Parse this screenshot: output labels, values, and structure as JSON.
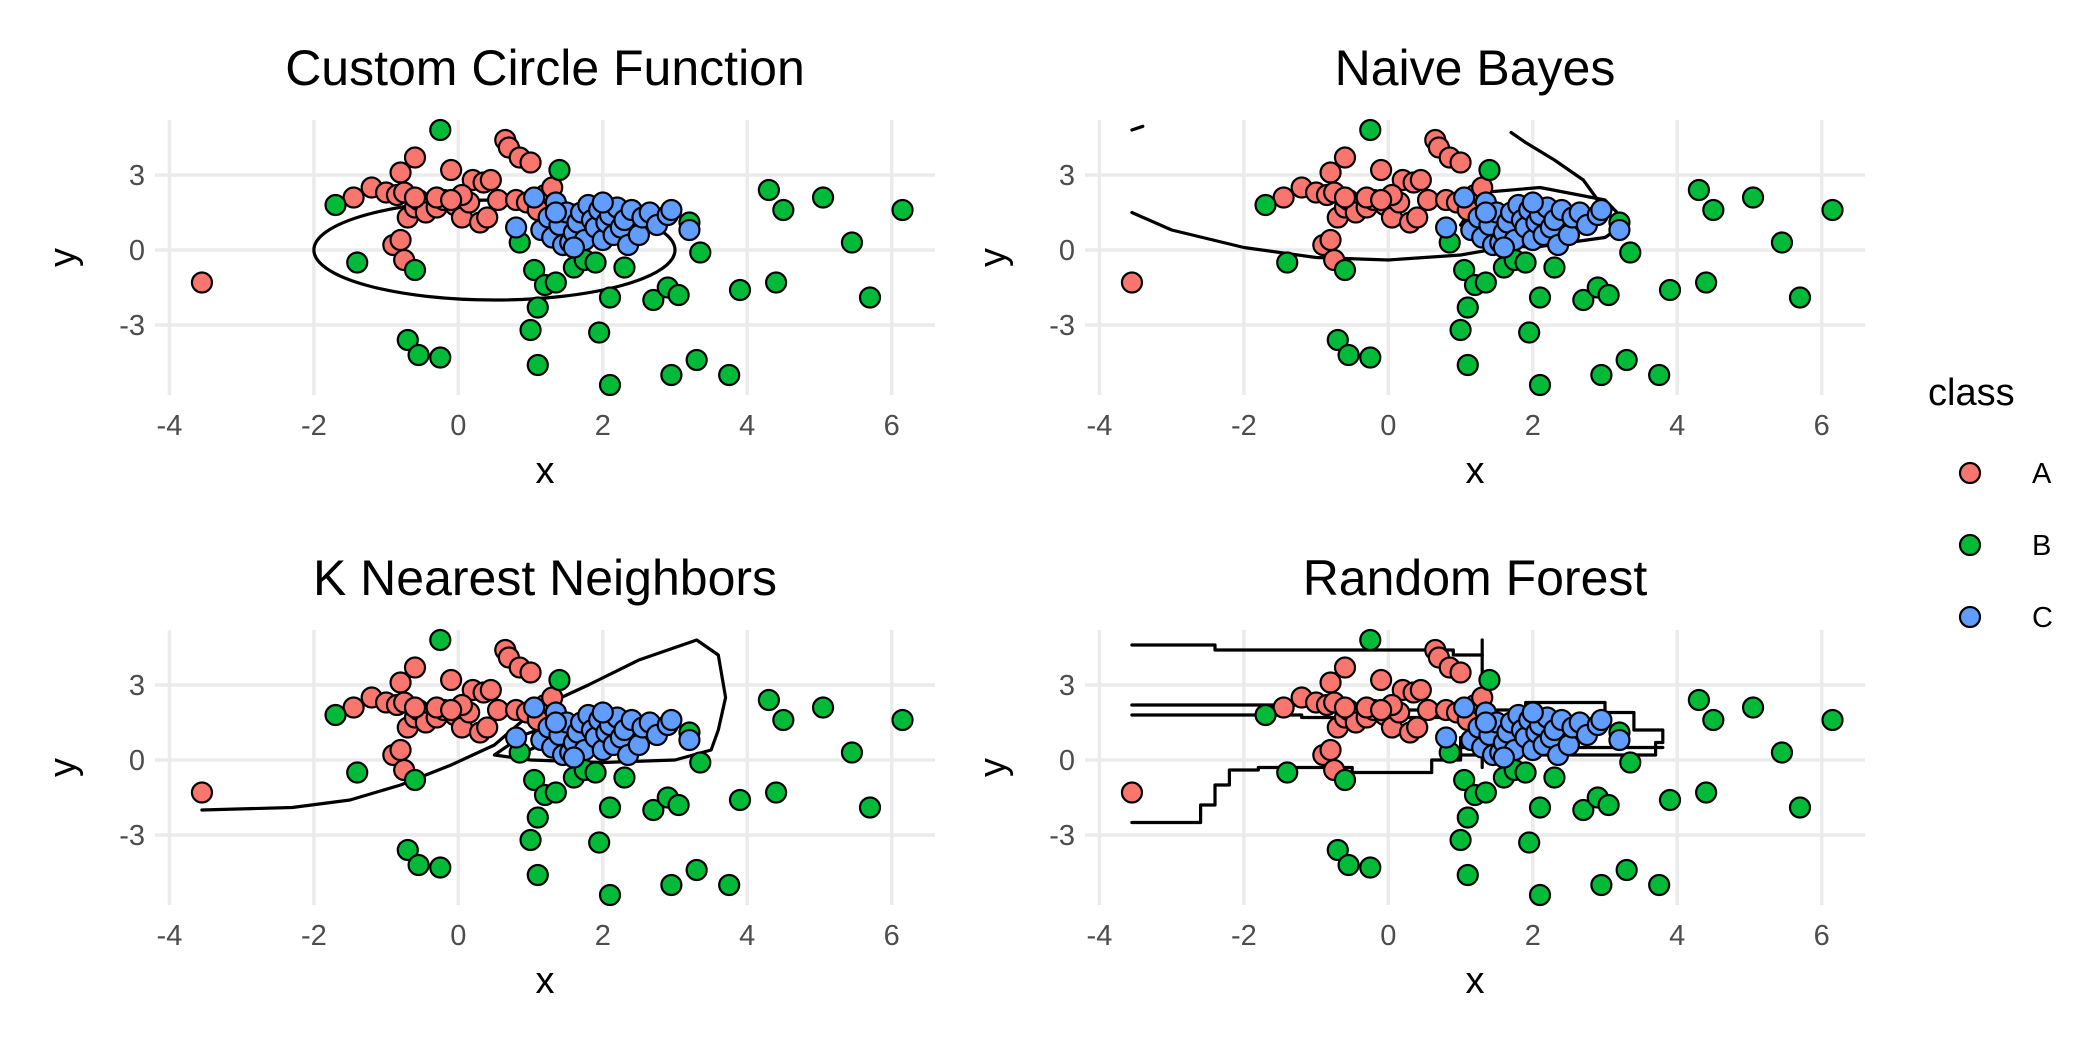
{
  "colors": {
    "A": "#F8766D",
    "B": "#00BA38",
    "C": "#619CFF"
  },
  "legend": {
    "title": "class",
    "items": [
      "A",
      "B",
      "C"
    ],
    "placement": "right"
  },
  "chart_data": [
    {
      "type": "scatter",
      "title": "Custom Circle Function",
      "xlabel": "x",
      "ylabel": "y",
      "xlim": [
        -4.2,
        6.6
      ],
      "ylim": [
        -5.8,
        5.2
      ],
      "xticks": [
        -4,
        -2,
        0,
        2,
        4,
        6
      ],
      "yticks": [
        -3,
        0,
        3
      ],
      "grid": true,
      "boundary": "ellipse",
      "boundary_ellipse": {
        "cx": 0.5,
        "cy": 0,
        "rx": 2.5,
        "ry": 2
      }
    },
    {
      "type": "scatter",
      "title": "Naive Bayes",
      "xlabel": "x",
      "ylabel": "y",
      "xlim": [
        -4.2,
        6.6
      ],
      "ylim": [
        -5.8,
        5.2
      ],
      "xticks": [
        -4,
        -2,
        0,
        2,
        4,
        6
      ],
      "yticks": [
        -3,
        0,
        3
      ],
      "grid": true,
      "boundary": "polyline",
      "boundary_paths": [
        [
          [
            -3.55,
            4.8
          ],
          [
            -3.4,
            4.95
          ]
        ],
        [
          [
            -3.55,
            1.5
          ],
          [
            -3.0,
            0.8
          ],
          [
            -2.0,
            0.1
          ],
          [
            -1.0,
            -0.3
          ],
          [
            0.0,
            -0.4
          ],
          [
            1.0,
            -0.2
          ],
          [
            2.0,
            0.3
          ],
          [
            2.7,
            1.2
          ],
          [
            2.9,
            2.0
          ],
          [
            2.7,
            2.8
          ],
          [
            2.3,
            3.6
          ],
          [
            1.9,
            4.3
          ],
          [
            1.7,
            4.7
          ]
        ],
        [
          [
            1.0,
            1.0
          ],
          [
            1.3,
            0.3
          ],
          [
            2.0,
            0.1
          ],
          [
            3.0,
            0.5
          ],
          [
            3.3,
            1.1
          ],
          [
            3.0,
            2.0
          ],
          [
            2.1,
            2.5
          ],
          [
            1.3,
            2.3
          ],
          [
            1.0,
            1.0
          ]
        ]
      ]
    },
    {
      "type": "scatter",
      "title": "K Nearest Neighbors",
      "xlabel": "x",
      "ylabel": "y",
      "xlim": [
        -4.2,
        6.6
      ],
      "ylim": [
        -5.8,
        5.2
      ],
      "xticks": [
        -4,
        -2,
        0,
        2,
        4,
        6
      ],
      "yticks": [
        -3,
        0,
        3
      ],
      "grid": true,
      "boundary": "polyline",
      "boundary_paths": [
        [
          [
            -3.55,
            -2.0
          ],
          [
            -2.3,
            -1.9
          ],
          [
            -1.5,
            -1.6
          ],
          [
            -0.8,
            -1.0
          ],
          [
            -0.1,
            -0.2
          ],
          [
            0.5,
            0.6
          ],
          [
            0.9,
            1.6
          ],
          [
            1.2,
            2.2
          ],
          [
            1.8,
            3.0
          ],
          [
            2.5,
            4.0
          ],
          [
            3.3,
            4.8
          ],
          [
            3.6,
            4.2
          ],
          [
            3.7,
            2.5
          ],
          [
            3.6,
            1.2
          ],
          [
            3.5,
            0.4
          ],
          [
            3.0,
            0.0
          ],
          [
            2.0,
            -0.1
          ],
          [
            1.0,
            0.0
          ],
          [
            0.5,
            0.2
          ],
          [
            0.9,
            1.0
          ],
          [
            1.5,
            1.6
          ],
          [
            1.3,
            0.8
          ],
          [
            0.9,
            0.3
          ]
        ]
      ]
    },
    {
      "type": "scatter",
      "title": "Random Forest",
      "xlabel": "x",
      "ylabel": "y",
      "xlim": [
        -4.2,
        6.6
      ],
      "ylim": [
        -5.8,
        5.2
      ],
      "xticks": [
        -4,
        -2,
        0,
        2,
        4,
        6
      ],
      "yticks": [
        -3,
        0,
        3
      ],
      "grid": true,
      "boundary": "step",
      "boundary_paths": [
        [
          [
            -3.55,
            4.6
          ],
          [
            -2.4,
            4.6
          ],
          [
            -2.4,
            4.4
          ],
          [
            0.9,
            4.4
          ],
          [
            0.9,
            4.2
          ],
          [
            1.3,
            4.2
          ]
        ],
        [
          [
            -3.55,
            2.2
          ],
          [
            0.0,
            2.2
          ],
          [
            0.0,
            2.0
          ],
          [
            1.1,
            2.0
          ],
          [
            1.1,
            2.3
          ],
          [
            1.3,
            2.3
          ]
        ],
        [
          [
            -3.55,
            1.8
          ],
          [
            -1.2,
            1.8
          ],
          [
            -1.2,
            1.7
          ],
          [
            1.1,
            1.7
          ]
        ],
        [
          [
            1.3,
            4.8
          ],
          [
            1.3,
            -0.3
          ]
        ],
        [
          [
            -3.55,
            -2.5
          ],
          [
            -2.6,
            -2.5
          ],
          [
            -2.6,
            -1.8
          ],
          [
            -2.4,
            -1.8
          ],
          [
            -2.4,
            -1.0
          ],
          [
            -2.2,
            -1.0
          ],
          [
            -2.2,
            -0.4
          ],
          [
            -1.8,
            -0.4
          ],
          [
            -1.8,
            -0.3
          ],
          [
            -0.5,
            -0.3
          ],
          [
            -0.5,
            -0.5
          ],
          [
            0.6,
            -0.5
          ],
          [
            0.6,
            0.0
          ],
          [
            1.0,
            0.0
          ],
          [
            1.0,
            0.9
          ],
          [
            1.5,
            0.9
          ],
          [
            1.5,
            2.0
          ],
          [
            1.9,
            2.0
          ],
          [
            1.9,
            2.3
          ],
          [
            3.0,
            2.3
          ],
          [
            3.0,
            1.9
          ],
          [
            3.4,
            1.9
          ],
          [
            3.4,
            1.2
          ],
          [
            3.8,
            1.2
          ],
          [
            3.8,
            0.7
          ],
          [
            3.7,
            0.7
          ],
          [
            3.7,
            0.2
          ],
          [
            0.9,
            0.2
          ]
        ],
        [
          [
            1.0,
            0.5
          ],
          [
            3.8,
            0.5
          ]
        ]
      ]
    }
  ],
  "points": {
    "A": [
      [
        -3.55,
        -1.3
      ],
      [
        -1.45,
        2.1
      ],
      [
        -1.2,
        2.5
      ],
      [
        -1.0,
        2.3
      ],
      [
        -0.85,
        2.2
      ],
      [
        -0.8,
        3.1
      ],
      [
        -0.75,
        2.3
      ],
      [
        -0.7,
        1.3
      ],
      [
        -0.6,
        1.7
      ],
      [
        -0.6,
        3.7
      ],
      [
        -0.55,
        2.0
      ],
      [
        -0.45,
        1.5
      ],
      [
        -0.3,
        1.7
      ],
      [
        -0.2,
        2.0
      ],
      [
        -0.1,
        3.2
      ],
      [
        -0.05,
        1.8
      ],
      [
        0.05,
        1.3
      ],
      [
        0.15,
        1.9
      ],
      [
        0.2,
        2.8
      ],
      [
        0.3,
        1.1
      ],
      [
        0.35,
        2.7
      ],
      [
        0.45,
        2.8
      ],
      [
        0.55,
        2.0
      ],
      [
        0.65,
        4.4
      ],
      [
        0.7,
        4.1
      ],
      [
        0.8,
        2.0
      ],
      [
        0.85,
        3.7
      ],
      [
        1.0,
        3.5
      ],
      [
        1.2,
        2.2
      ],
      [
        1.3,
        2.5
      ],
      [
        0.95,
        1.9
      ],
      [
        1.1,
        1.6
      ],
      [
        -0.9,
        0.2
      ],
      [
        -0.8,
        0.4
      ],
      [
        -0.75,
        -0.4
      ],
      [
        0.4,
        1.3
      ],
      [
        -0.3,
        2.1
      ],
      [
        0.05,
        2.2
      ],
      [
        -0.1,
        2.0
      ],
      [
        -0.6,
        2.1
      ]
    ],
    "B": [
      [
        -1.7,
        1.8
      ],
      [
        -1.4,
        -0.5
      ],
      [
        -0.7,
        -3.6
      ],
      [
        -0.55,
        -4.2
      ],
      [
        -0.6,
        -0.8
      ],
      [
        -0.25,
        -4.3
      ],
      [
        -0.25,
        4.8
      ],
      [
        0.85,
        0.3
      ],
      [
        1.0,
        -3.2
      ],
      [
        1.05,
        -0.8
      ],
      [
        1.1,
        -4.6
      ],
      [
        1.1,
        -2.3
      ],
      [
        1.15,
        0.8
      ],
      [
        1.2,
        -1.4
      ],
      [
        1.35,
        -1.3
      ],
      [
        1.4,
        3.2
      ],
      [
        1.5,
        1.1
      ],
      [
        1.6,
        -0.7
      ],
      [
        1.75,
        -0.4
      ],
      [
        1.9,
        -0.5
      ],
      [
        1.95,
        -3.3
      ],
      [
        2.1,
        -1.9
      ],
      [
        2.1,
        -5.4
      ],
      [
        2.3,
        -0.7
      ],
      [
        2.7,
        -2.0
      ],
      [
        2.75,
        1.1
      ],
      [
        2.9,
        -1.5
      ],
      [
        2.95,
        -5.0
      ],
      [
        3.05,
        -1.8
      ],
      [
        3.2,
        1.1
      ],
      [
        3.3,
        -4.4
      ],
      [
        3.35,
        -0.1
      ],
      [
        3.75,
        -5.0
      ],
      [
        3.9,
        -1.6
      ],
      [
        4.3,
        2.4
      ],
      [
        4.4,
        -1.3
      ],
      [
        4.5,
        1.6
      ],
      [
        5.05,
        2.1
      ],
      [
        5.45,
        0.3
      ],
      [
        5.7,
        -1.9
      ],
      [
        6.15,
        1.6
      ]
    ],
    "C": [
      [
        0.8,
        0.9
      ],
      [
        1.05,
        2.1
      ],
      [
        1.15,
        0.8
      ],
      [
        1.25,
        1.3
      ],
      [
        1.3,
        0.5
      ],
      [
        1.35,
        1.9
      ],
      [
        1.4,
        1.0
      ],
      [
        1.45,
        0.2
      ],
      [
        1.5,
        1.5
      ],
      [
        1.55,
        0.3
      ],
      [
        1.6,
        0.7
      ],
      [
        1.65,
        1.1
      ],
      [
        1.7,
        1.5
      ],
      [
        1.75,
        0.4
      ],
      [
        1.8,
        1.8
      ],
      [
        1.85,
        1.2
      ],
      [
        1.9,
        0.9
      ],
      [
        1.95,
        1.6
      ],
      [
        2.0,
        0.4
      ],
      [
        2.05,
        1.1
      ],
      [
        2.1,
        1.4
      ],
      [
        2.15,
        0.6
      ],
      [
        2.2,
        1.7
      ],
      [
        2.25,
        0.9
      ],
      [
        2.3,
        1.2
      ],
      [
        2.35,
        0.2
      ],
      [
        2.4,
        1.6
      ],
      [
        2.5,
        0.6
      ],
      [
        2.55,
        1.3
      ],
      [
        2.65,
        1.5
      ],
      [
        2.75,
        1.0
      ],
      [
        2.9,
        1.4
      ],
      [
        2.95,
        1.6
      ],
      [
        3.2,
        0.8
      ],
      [
        1.6,
        0.1
      ],
      [
        2.0,
        1.9
      ],
      [
        1.35,
        1.5
      ]
    ]
  }
}
